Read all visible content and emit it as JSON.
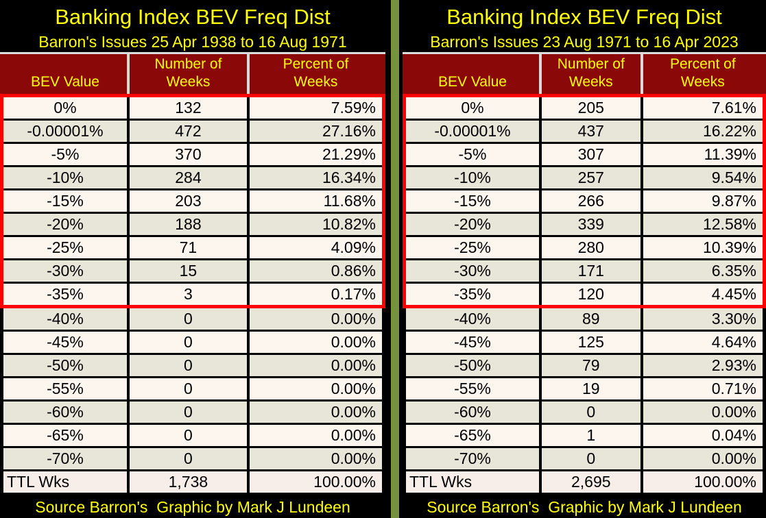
{
  "colors": {
    "background": "#000000",
    "title_text": "#FFFF00",
    "header_bg": "#8B0808",
    "header_text": "#FFFF00",
    "header_grid_line": "#DCDCDC",
    "row_light": "#FCF6EF",
    "row_dark": "#E8E5D9",
    "row_total": "#F8EEE9",
    "grid_line": "#000000",
    "highlight_border": "#FF0000",
    "panel_divider": "#75923C"
  },
  "footer": {
    "text": "Source Barron's  Graphic by Mark J Lundeen"
  },
  "panels": [
    {
      "title": "Banking Index BEV Freq Dist",
      "subtitle": "Barron's Issues 25 Apr 1938 to 16 Aug 1971",
      "columns": [
        {
          "line1": "",
          "line2": "BEV Value"
        },
        {
          "line1": "Number of",
          "line2": "Weeks"
        },
        {
          "line1": "Percent of",
          "line2": "Weeks"
        }
      ],
      "highlight_row_count": 9,
      "rows": [
        [
          "0%",
          "132",
          "7.59%"
        ],
        [
          "-0.00001%",
          "472",
          "27.16%"
        ],
        [
          "-5%",
          "370",
          "21.29%"
        ],
        [
          "-10%",
          "284",
          "16.34%"
        ],
        [
          "-15%",
          "203",
          "11.68%"
        ],
        [
          "-20%",
          "188",
          "10.82%"
        ],
        [
          "-25%",
          "71",
          "4.09%"
        ],
        [
          "-30%",
          "15",
          "0.86%"
        ],
        [
          "-35%",
          "3",
          "0.17%"
        ],
        [
          "-40%",
          "0",
          "0.00%"
        ],
        [
          "-45%",
          "0",
          "0.00%"
        ],
        [
          "-50%",
          "0",
          "0.00%"
        ],
        [
          "-55%",
          "0",
          "0.00%"
        ],
        [
          "-60%",
          "0",
          "0.00%"
        ],
        [
          "-65%",
          "0",
          "0.00%"
        ],
        [
          "-70%",
          "0",
          "0.00%"
        ],
        [
          "TTL Wks",
          "1,738",
          "100.00%"
        ]
      ]
    },
    {
      "title": "Banking Index BEV Freq Dist",
      "subtitle": "Barron's Issues 23 Aug 1971 to 16 Apr 2023",
      "columns": [
        {
          "line1": "",
          "line2": "BEV Value"
        },
        {
          "line1": "Number of",
          "line2": "Weeks"
        },
        {
          "line1": "Percent of",
          "line2": "Weeks"
        }
      ],
      "highlight_row_count": 9,
      "rows": [
        [
          "0%",
          "205",
          "7.61%"
        ],
        [
          "-0.00001%",
          "437",
          "16.22%"
        ],
        [
          "-5%",
          "307",
          "11.39%"
        ],
        [
          "-10%",
          "257",
          "9.54%"
        ],
        [
          "-15%",
          "266",
          "9.87%"
        ],
        [
          "-20%",
          "339",
          "12.58%"
        ],
        [
          "-25%",
          "280",
          "10.39%"
        ],
        [
          "-30%",
          "171",
          "6.35%"
        ],
        [
          "-35%",
          "120",
          "4.45%"
        ],
        [
          "-40%",
          "89",
          "3.30%"
        ],
        [
          "-45%",
          "125",
          "4.64%"
        ],
        [
          "-50%",
          "79",
          "2.93%"
        ],
        [
          "-55%",
          "19",
          "0.71%"
        ],
        [
          "-60%",
          "0",
          "0.00%"
        ],
        [
          "-65%",
          "1",
          "0.04%"
        ],
        [
          "-70%",
          "0",
          "0.00%"
        ],
        [
          "TTL Wks",
          "2,695",
          "100.00%"
        ]
      ]
    }
  ],
  "chart_data": [
    {
      "type": "table",
      "title": "Banking Index BEV Freq Dist",
      "subtitle": "Barron's Issues 25 Apr 1938 to 16 Aug 1971",
      "columns": [
        "BEV Value",
        "Number of Weeks",
        "Percent of Weeks"
      ],
      "rows": [
        [
          "0%",
          132,
          7.59
        ],
        [
          "-0.00001%",
          472,
          27.16
        ],
        [
          "-5%",
          370,
          21.29
        ],
        [
          "-10%",
          284,
          16.34
        ],
        [
          "-15%",
          203,
          11.68
        ],
        [
          "-20%",
          188,
          10.82
        ],
        [
          "-25%",
          71,
          4.09
        ],
        [
          "-30%",
          15,
          0.86
        ],
        [
          "-35%",
          3,
          0.17
        ],
        [
          "-40%",
          0,
          0.0
        ],
        [
          "-45%",
          0,
          0.0
        ],
        [
          "-50%",
          0,
          0.0
        ],
        [
          "-55%",
          0,
          0.0
        ],
        [
          "-60%",
          0,
          0.0
        ],
        [
          "-65%",
          0,
          0.0
        ],
        [
          "-70%",
          0,
          0.0
        ]
      ],
      "total_row": [
        "TTL Wks",
        1738,
        100.0
      ],
      "annotation": "Rows 0% through -35% outlined with red border"
    },
    {
      "type": "table",
      "title": "Banking Index BEV Freq Dist",
      "subtitle": "Barron's Issues 23 Aug 1971 to 16 Apr 2023",
      "columns": [
        "BEV Value",
        "Number of Weeks",
        "Percent of Weeks"
      ],
      "rows": [
        [
          "0%",
          205,
          7.61
        ],
        [
          "-0.00001%",
          437,
          16.22
        ],
        [
          "-5%",
          307,
          11.39
        ],
        [
          "-10%",
          257,
          9.54
        ],
        [
          "-15%",
          266,
          9.87
        ],
        [
          "-20%",
          339,
          12.58
        ],
        [
          "-25%",
          280,
          10.39
        ],
        [
          "-30%",
          171,
          6.35
        ],
        [
          "-35%",
          120,
          4.45
        ],
        [
          "-40%",
          89,
          3.3
        ],
        [
          "-45%",
          125,
          4.64
        ],
        [
          "-50%",
          79,
          2.93
        ],
        [
          "-55%",
          19,
          0.71
        ],
        [
          "-60%",
          0,
          0.0
        ],
        [
          "-65%",
          1,
          0.04
        ],
        [
          "-70%",
          0,
          0.0
        ]
      ],
      "total_row": [
        "TTL Wks",
        2695,
        100.0
      ],
      "annotation": "Rows 0% through -35% outlined with red border"
    }
  ]
}
